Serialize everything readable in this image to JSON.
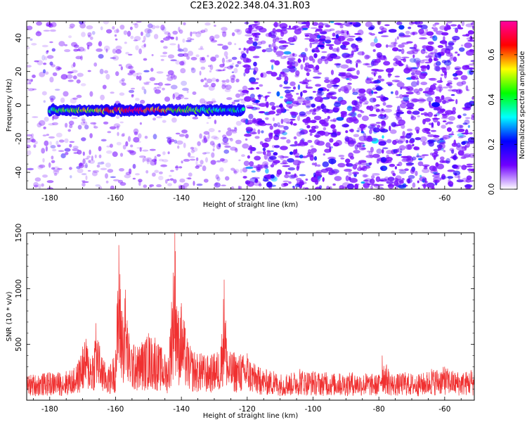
{
  "title": "C2E3.2022.348.04.31.R03",
  "chart_data": [
    {
      "type": "heatmap",
      "xlabel": "Height of straight line (km)",
      "ylabel": "Frequency (Hz)",
      "xlim": [
        -187,
        -51
      ],
      "ylim": [
        -50,
        50
      ],
      "xticks": [
        -180,
        -160,
        -140,
        -120,
        -100,
        -80,
        -60
      ],
      "yticks": [
        -40,
        -20,
        0,
        20,
        40
      ],
      "colorbar": {
        "label": "Normalized spectral amplitude",
        "range": [
          0,
          0.75
        ],
        "ticks": [
          "0.0",
          "0.2",
          "0.4",
          "0.6"
        ],
        "colormap": [
          "#ffffff",
          "#7000ff",
          "#0000ff",
          "#00ffff",
          "#00ff00",
          "#ffff00",
          "#ff0000",
          "#ff00a0"
        ]
      },
      "signal_band": {
        "x_range": [
          -180,
          -121
        ],
        "frequency_hz": -3,
        "peak_amplitude": 0.7,
        "peak_x": -154
      },
      "noise_regions": [
        {
          "x_range": [
            -187,
            -121
          ],
          "density": "sparse",
          "amplitude": 0.1
        },
        {
          "x_range": [
            -121,
            -51
          ],
          "density": "dense",
          "amplitude": 0.15
        }
      ]
    },
    {
      "type": "line",
      "xlabel": "Height of straight line (km)",
      "ylabel": "SNR (10 * v/v)",
      "xlim": [
        -187,
        -51
      ],
      "ylim": [
        0,
        1500
      ],
      "xticks": [
        -180,
        -160,
        -140,
        -120,
        -100,
        -80,
        -60
      ],
      "yticks": [
        500,
        1000,
        1500
      ],
      "color": "#f03030",
      "series": [
        {
          "x": [
            -187,
            -180,
            -175,
            -172,
            -170,
            -169,
            -167,
            -166,
            -164,
            -162,
            -160,
            -159,
            -158,
            -157,
            -156,
            -154,
            -152,
            -150,
            -148,
            -146,
            -144,
            -143,
            -142,
            -141,
            -140,
            -138,
            -136,
            -134,
            -132,
            -130,
            -128,
            -127,
            -126,
            -124,
            -122,
            -120,
            -118,
            -116,
            -112,
            -108,
            -104,
            -100,
            -96,
            -92,
            -88,
            -84,
            -80,
            -79,
            -76,
            -72,
            -68,
            -64,
            -60,
            -56,
            -52
          ],
          "values": [
            230,
            250,
            260,
            300,
            480,
            550,
            400,
            690,
            380,
            300,
            450,
            1390,
            800,
            990,
            600,
            480,
            520,
            600,
            560,
            470,
            380,
            880,
            1520,
            800,
            870,
            520,
            430,
            420,
            400,
            420,
            480,
            1080,
            440,
            430,
            410,
            420,
            330,
            290,
            260,
            230,
            280,
            260,
            250,
            240,
            250,
            240,
            230,
            400,
            230,
            250,
            230,
            280,
            300,
            250,
            270
          ]
        }
      ]
    }
  ]
}
